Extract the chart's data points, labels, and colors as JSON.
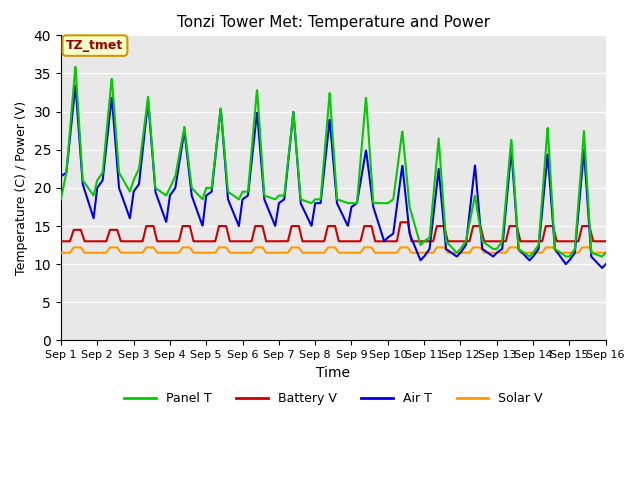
{
  "title": "Tonzi Tower Met: Temperature and Power",
  "xlabel": "Time",
  "ylabel": "Temperature (C) / Power (V)",
  "ylim": [
    0,
    40
  ],
  "yticks": [
    0,
    5,
    10,
    15,
    20,
    25,
    30,
    35,
    40
  ],
  "x_labels": [
    "Sep 1",
    "Sep 2",
    "Sep 3",
    "Sep 4",
    "Sep 5",
    "Sep 6",
    "Sep 7",
    "Sep 8",
    "Sep 9",
    "Sep 10",
    "Sep 11",
    "Sep 12",
    "Sep 13",
    "Sep 14",
    "Sep 15",
    "Sep 16"
  ],
  "bg_color": "#e8e8e8",
  "panel_t_color": "#00cc00",
  "battery_v_color": "#cc0000",
  "air_t_color": "#0000ee",
  "solar_v_color": "#ff9900",
  "annotation_text": "TZ_tmet",
  "annotation_bg": "#ffffcc",
  "annotation_border": "#cc9900",
  "annotation_text_color": "#990000",
  "legend_entries": [
    "Panel T",
    "Battery V",
    "Air T",
    "Solar V"
  ],
  "panel_t_knots": [
    0.0,
    0.15,
    0.4,
    0.6,
    0.9,
    1.0,
    1.15,
    1.4,
    1.6,
    1.9,
    2.0,
    2.15,
    2.4,
    2.6,
    2.9,
    3.0,
    3.15,
    3.4,
    3.6,
    3.9,
    4.0,
    4.15,
    4.4,
    4.6,
    4.9,
    5.0,
    5.15,
    5.4,
    5.6,
    5.9,
    6.0,
    6.15,
    6.4,
    6.6,
    6.9,
    7.0,
    7.15,
    7.4,
    7.6,
    7.9,
    8.0,
    8.15,
    8.4,
    8.6,
    8.9,
    9.0,
    9.15,
    9.4,
    9.6,
    9.9,
    10.0,
    10.15,
    10.4,
    10.6,
    10.9,
    11.0,
    11.15,
    11.4,
    11.6,
    11.9,
    12.0,
    12.15,
    12.4,
    12.6,
    12.9,
    13.0,
    13.15,
    13.4,
    13.6,
    13.9,
    14.0,
    14.15,
    14.4,
    14.6,
    14.9,
    15.0
  ],
  "panel_t_vals": [
    18.5,
    22.0,
    36.0,
    21.0,
    19.0,
    21.0,
    22.0,
    34.5,
    22.0,
    19.5,
    21.0,
    22.5,
    32.0,
    20.0,
    19.0,
    20.0,
    21.5,
    28.0,
    20.0,
    18.5,
    20.0,
    20.0,
    30.5,
    19.5,
    18.5,
    19.5,
    19.5,
    33.0,
    19.0,
    18.5,
    19.0,
    19.0,
    30.0,
    18.5,
    18.0,
    18.5,
    18.5,
    32.5,
    18.5,
    18.0,
    18.0,
    18.0,
    32.0,
    18.0,
    18.0,
    18.0,
    18.5,
    27.5,
    17.5,
    12.5,
    13.0,
    13.5,
    26.5,
    13.0,
    11.5,
    12.0,
    13.0,
    19.0,
    13.0,
    12.0,
    12.0,
    13.0,
    26.5,
    12.0,
    11.0,
    11.5,
    12.5,
    28.0,
    12.0,
    11.0,
    11.0,
    12.0,
    27.5,
    11.5,
    11.0,
    11.5
  ],
  "air_t_knots": [
    0.0,
    0.15,
    0.4,
    0.6,
    0.9,
    1.0,
    1.15,
    1.4,
    1.6,
    1.9,
    2.0,
    2.15,
    2.4,
    2.6,
    2.9,
    3.0,
    3.15,
    3.4,
    3.6,
    3.9,
    4.0,
    4.15,
    4.4,
    4.6,
    4.9,
    5.0,
    5.15,
    5.4,
    5.6,
    5.9,
    6.0,
    6.15,
    6.4,
    6.6,
    6.9,
    7.0,
    7.15,
    7.4,
    7.6,
    7.9,
    8.0,
    8.15,
    8.4,
    8.6,
    8.9,
    9.0,
    9.15,
    9.4,
    9.6,
    9.9,
    10.0,
    10.15,
    10.4,
    10.6,
    10.9,
    11.0,
    11.15,
    11.4,
    11.6,
    11.9,
    12.0,
    12.15,
    12.4,
    12.6,
    12.9,
    13.0,
    13.15,
    13.4,
    13.6,
    13.9,
    14.0,
    14.15,
    14.4,
    14.6,
    14.9,
    15.0
  ],
  "air_t_vals": [
    21.5,
    22.0,
    33.5,
    20.5,
    16.0,
    20.0,
    21.0,
    32.0,
    20.0,
    16.0,
    19.5,
    20.5,
    31.5,
    19.5,
    15.5,
    19.0,
    20.0,
    27.5,
    19.0,
    15.0,
    19.0,
    19.5,
    30.5,
    18.5,
    15.0,
    18.5,
    19.0,
    30.0,
    18.5,
    15.0,
    18.0,
    18.5,
    30.0,
    18.0,
    15.0,
    18.0,
    18.0,
    29.0,
    18.0,
    15.0,
    17.5,
    18.0,
    25.0,
    17.5,
    13.0,
    13.5,
    14.0,
    23.0,
    14.0,
    10.5,
    11.0,
    12.0,
    22.5,
    12.0,
    11.0,
    11.5,
    12.5,
    23.0,
    12.0,
    11.0,
    11.5,
    12.0,
    25.0,
    12.0,
    10.5,
    11.0,
    12.0,
    24.5,
    12.0,
    10.0,
    10.5,
    11.5,
    25.0,
    11.0,
    9.5,
    10.0
  ],
  "battery_v_knots": [
    0.0,
    0.25,
    0.35,
    0.55,
    0.65,
    0.85,
    1.0,
    1.25,
    1.35,
    1.55,
    1.65,
    1.85,
    2.0,
    2.25,
    2.35,
    2.55,
    2.65,
    2.85,
    3.0,
    3.25,
    3.35,
    3.55,
    3.65,
    3.85,
    4.0,
    4.25,
    4.35,
    4.55,
    4.65,
    4.85,
    5.0,
    5.25,
    5.35,
    5.55,
    5.65,
    5.85,
    6.0,
    6.25,
    6.35,
    6.55,
    6.65,
    6.85,
    7.0,
    7.25,
    7.35,
    7.55,
    7.65,
    7.85,
    8.0,
    8.25,
    8.35,
    8.55,
    8.65,
    8.85,
    9.0,
    9.25,
    9.35,
    9.55,
    9.65,
    9.85,
    10.0,
    10.25,
    10.35,
    10.55,
    10.65,
    10.85,
    11.0,
    11.25,
    11.35,
    11.55,
    11.65,
    11.85,
    12.0,
    12.25,
    12.35,
    12.55,
    12.65,
    12.85,
    13.0,
    13.25,
    13.35,
    13.55,
    13.65,
    13.85,
    14.0,
    14.25,
    14.35,
    14.55,
    14.65,
    14.85,
    15.0
  ],
  "battery_v_vals": [
    13.0,
    13.0,
    14.5,
    14.5,
    13.0,
    13.0,
    13.0,
    13.0,
    14.5,
    14.5,
    13.0,
    13.0,
    13.0,
    13.0,
    15.0,
    15.0,
    13.0,
    13.0,
    13.0,
    13.0,
    15.0,
    15.0,
    13.0,
    13.0,
    13.0,
    13.0,
    15.0,
    15.0,
    13.0,
    13.0,
    13.0,
    13.0,
    15.0,
    15.0,
    13.0,
    13.0,
    13.0,
    13.0,
    15.0,
    15.0,
    13.0,
    13.0,
    13.0,
    13.0,
    15.0,
    15.0,
    13.0,
    13.0,
    13.0,
    13.0,
    15.0,
    15.0,
    13.0,
    13.0,
    13.0,
    13.0,
    15.5,
    15.5,
    13.0,
    13.0,
    13.0,
    13.0,
    15.0,
    15.0,
    13.0,
    13.0,
    13.0,
    13.0,
    15.0,
    15.0,
    13.0,
    13.0,
    13.0,
    13.0,
    15.0,
    15.0,
    13.0,
    13.0,
    13.0,
    13.0,
    15.0,
    15.0,
    13.0,
    13.0,
    13.0,
    13.0,
    15.0,
    15.0,
    13.0,
    13.0,
    13.0
  ],
  "solar_v_knots": [
    0.0,
    0.25,
    0.35,
    0.55,
    0.65,
    0.85,
    1.0,
    1.25,
    1.35,
    1.55,
    1.65,
    1.85,
    2.0,
    2.25,
    2.35,
    2.55,
    2.65,
    2.85,
    3.0,
    3.25,
    3.35,
    3.55,
    3.65,
    3.85,
    4.0,
    4.25,
    4.35,
    4.55,
    4.65,
    4.85,
    5.0,
    5.25,
    5.35,
    5.55,
    5.65,
    5.85,
    6.0,
    6.25,
    6.35,
    6.55,
    6.65,
    6.85,
    7.0,
    7.25,
    7.35,
    7.55,
    7.65,
    7.85,
    8.0,
    8.25,
    8.35,
    8.55,
    8.65,
    8.85,
    9.0,
    9.25,
    9.35,
    9.55,
    9.65,
    9.85,
    10.0,
    10.25,
    10.35,
    10.55,
    10.65,
    10.85,
    11.0,
    11.25,
    11.35,
    11.55,
    11.65,
    11.85,
    12.0,
    12.25,
    12.35,
    12.55,
    12.65,
    12.85,
    13.0,
    13.25,
    13.35,
    13.55,
    13.65,
    13.85,
    14.0,
    14.25,
    14.35,
    14.55,
    14.65,
    14.85,
    15.0
  ],
  "solar_v_vals": [
    11.5,
    11.5,
    12.2,
    12.2,
    11.5,
    11.5,
    11.5,
    11.5,
    12.2,
    12.2,
    11.5,
    11.5,
    11.5,
    11.5,
    12.2,
    12.2,
    11.5,
    11.5,
    11.5,
    11.5,
    12.2,
    12.2,
    11.5,
    11.5,
    11.5,
    11.5,
    12.2,
    12.2,
    11.5,
    11.5,
    11.5,
    11.5,
    12.2,
    12.2,
    11.5,
    11.5,
    11.5,
    11.5,
    12.2,
    12.2,
    11.5,
    11.5,
    11.5,
    11.5,
    12.2,
    12.2,
    11.5,
    11.5,
    11.5,
    11.5,
    12.2,
    12.2,
    11.5,
    11.5,
    11.5,
    11.5,
    12.2,
    12.2,
    11.5,
    11.5,
    11.5,
    11.5,
    12.2,
    12.2,
    11.5,
    11.5,
    11.5,
    11.5,
    12.2,
    12.2,
    11.5,
    11.5,
    11.5,
    11.5,
    12.2,
    12.2,
    11.5,
    11.5,
    11.5,
    11.5,
    12.2,
    12.2,
    11.5,
    11.5,
    11.5,
    11.5,
    12.2,
    12.2,
    11.5,
    11.5,
    11.5
  ]
}
